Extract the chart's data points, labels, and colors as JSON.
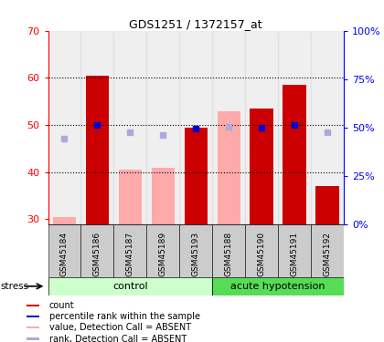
{
  "title": "GDS1251 / 1372157_at",
  "samples": [
    "GSM45184",
    "GSM45186",
    "GSM45187",
    "GSM45189",
    "GSM45193",
    "GSM45188",
    "GSM45190",
    "GSM45191",
    "GSM45192"
  ],
  "ylim_left": [
    29,
    70
  ],
  "ylim_right": [
    0,
    100
  ],
  "yticks_left": [
    30,
    40,
    50,
    60,
    70
  ],
  "ytick_right_labels": [
    "0%",
    "25%",
    "50%",
    "75%",
    "100%"
  ],
  "ytick_right_vals": [
    0,
    25,
    50,
    75,
    100
  ],
  "bar_values": [
    30.5,
    60.5,
    40.5,
    41.0,
    49.5,
    53.0,
    53.5,
    58.5,
    37.0
  ],
  "bar_is_absent": [
    true,
    false,
    true,
    true,
    false,
    true,
    false,
    false,
    false
  ],
  "bar_color_present": "#cc0000",
  "bar_color_absent": "#ffaaaa",
  "rank_values": [
    44.0,
    51.5,
    47.5,
    46.0,
    49.5,
    50.5,
    50.0,
    51.5,
    47.5
  ],
  "rank_is_absent": [
    true,
    false,
    true,
    true,
    false,
    true,
    false,
    false,
    true
  ],
  "rank_color_present": "#0000cc",
  "rank_color_absent": "#aaaadd",
  "bar_bottom": 29,
  "group_colors": {
    "control": "#ccffcc",
    "acute hypotension": "#55dd55"
  },
  "group_spans": [
    {
      "label": "control",
      "start": 0,
      "end": 5
    },
    {
      "label": "acute hypotension",
      "start": 5,
      "end": 9
    }
  ],
  "legend_items": [
    {
      "label": "count",
      "color": "#cc0000"
    },
    {
      "label": "percentile rank within the sample",
      "color": "#0000cc"
    },
    {
      "label": "value, Detection Call = ABSENT",
      "color": "#ffaaaa"
    },
    {
      "label": "rank, Detection Call = ABSENT",
      "color": "#aaaadd"
    }
  ],
  "grid_lines": [
    40,
    50,
    60
  ]
}
